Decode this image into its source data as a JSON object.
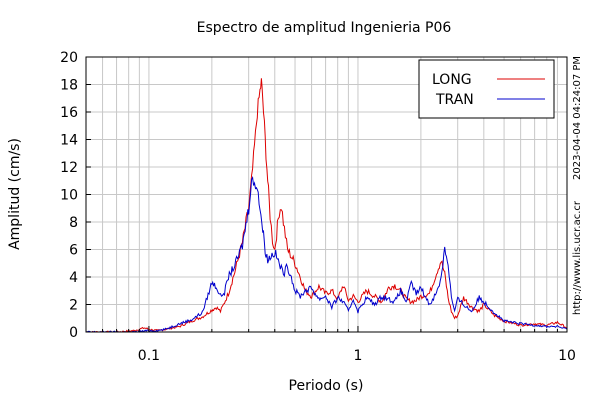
{
  "chart_data": {
    "type": "line",
    "title": "Espectro de amplitud Ingenieria P06",
    "xlabel": "Periodo (s)",
    "ylabel": "Amplitud (cm/s)",
    "x_scale": "log",
    "xlim": [
      0.05,
      10
    ],
    "ylim": [
      0,
      20
    ],
    "x_ticks": [
      0.1,
      1,
      10
    ],
    "x_tick_labels": [
      "0.1",
      "1",
      "10"
    ],
    "y_ticks": [
      0,
      2,
      4,
      6,
      8,
      10,
      12,
      14,
      16,
      18,
      20
    ],
    "y_tick_labels": [
      "0",
      "2",
      "4",
      "6",
      "8",
      "10",
      "12",
      "14",
      "16",
      "18",
      "20"
    ],
    "grid": true,
    "legend_position": "top-right",
    "series": [
      {
        "name": "LONG",
        "color": "#dd0000",
        "x": [
          0.05,
          0.07,
          0.085,
          0.095,
          0.1,
          0.11,
          0.12,
          0.14,
          0.16,
          0.18,
          0.2,
          0.21,
          0.22,
          0.24,
          0.26,
          0.28,
          0.3,
          0.31,
          0.32,
          0.33,
          0.34,
          0.345,
          0.35,
          0.36,
          0.37,
          0.38,
          0.39,
          0.4,
          0.42,
          0.43,
          0.44,
          0.46,
          0.48,
          0.5,
          0.53,
          0.56,
          0.6,
          0.65,
          0.7,
          0.75,
          0.8,
          0.85,
          0.9,
          0.95,
          1.0,
          1.1,
          1.2,
          1.3,
          1.4,
          1.5,
          1.6,
          1.7,
          1.8,
          1.9,
          2.0,
          2.2,
          2.4,
          2.5,
          2.6,
          2.7,
          2.8,
          2.9,
          3.0,
          3.2,
          3.5,
          3.8,
          4.0,
          4.5,
          5.0,
          6.0,
          7.0,
          8.0,
          9.0,
          10.0
        ],
        "y": [
          0.0,
          0.0,
          0.1,
          0.3,
          0.2,
          0.1,
          0.2,
          0.4,
          0.8,
          1.1,
          1.6,
          1.8,
          1.5,
          2.8,
          4.6,
          6.5,
          9.0,
          11.0,
          13.5,
          16.0,
          17.5,
          18.2,
          17.0,
          14.0,
          11.0,
          8.5,
          6.7,
          6.0,
          8.8,
          9.2,
          8.0,
          6.0,
          5.5,
          5.0,
          4.0,
          3.0,
          2.6,
          3.3,
          2.8,
          3.0,
          2.4,
          3.4,
          2.3,
          2.6,
          2.2,
          3.0,
          2.6,
          2.2,
          3.2,
          3.4,
          3.0,
          2.4,
          2.2,
          2.3,
          2.6,
          2.8,
          4.5,
          5.2,
          4.2,
          2.5,
          1.5,
          1.0,
          1.2,
          2.5,
          1.8,
          1.5,
          2.0,
          1.2,
          0.8,
          0.5,
          0.6,
          0.5,
          0.7,
          0.3
        ]
      },
      {
        "name": "TRAN",
        "color": "#0000cc",
        "x": [
          0.05,
          0.07,
          0.085,
          0.1,
          0.11,
          0.12,
          0.14,
          0.16,
          0.18,
          0.19,
          0.2,
          0.21,
          0.22,
          0.23,
          0.24,
          0.26,
          0.28,
          0.3,
          0.31,
          0.32,
          0.33,
          0.34,
          0.35,
          0.36,
          0.37,
          0.38,
          0.4,
          0.42,
          0.44,
          0.46,
          0.48,
          0.5,
          0.53,
          0.56,
          0.6,
          0.65,
          0.7,
          0.75,
          0.8,
          0.85,
          0.9,
          0.95,
          1.0,
          1.1,
          1.2,
          1.3,
          1.4,
          1.5,
          1.6,
          1.7,
          1.8,
          1.9,
          2.0,
          2.2,
          2.4,
          2.5,
          2.6,
          2.7,
          2.8,
          2.9,
          3.0,
          3.2,
          3.5,
          3.8,
          4.0,
          4.5,
          5.0,
          6.0,
          7.0,
          8.0,
          9.0,
          10.0
        ],
        "y": [
          0.0,
          0.0,
          0.0,
          0.1,
          0.1,
          0.2,
          0.6,
          0.9,
          1.4,
          2.5,
          3.6,
          3.3,
          2.6,
          2.9,
          4.0,
          5.0,
          6.3,
          9.0,
          11.3,
          10.5,
          10.8,
          9.0,
          7.5,
          6.0,
          5.2,
          5.5,
          5.8,
          5.0,
          4.2,
          4.8,
          4.0,
          3.0,
          2.6,
          3.0,
          3.2,
          2.4,
          2.6,
          1.8,
          2.5,
          2.2,
          1.5,
          2.4,
          1.5,
          2.5,
          2.0,
          2.6,
          2.4,
          2.2,
          3.0,
          2.2,
          3.5,
          2.8,
          3.2,
          2.0,
          3.0,
          4.0,
          6.1,
          5.0,
          2.5,
          1.5,
          2.4,
          2.0,
          1.5,
          2.5,
          2.2,
          1.4,
          0.8,
          0.6,
          0.5,
          0.4,
          0.4,
          0.2
        ]
      }
    ],
    "annotations": [
      "2023-04-04 04:24:07 PM",
      "http://www.lis.ucr.ac.cr"
    ]
  }
}
